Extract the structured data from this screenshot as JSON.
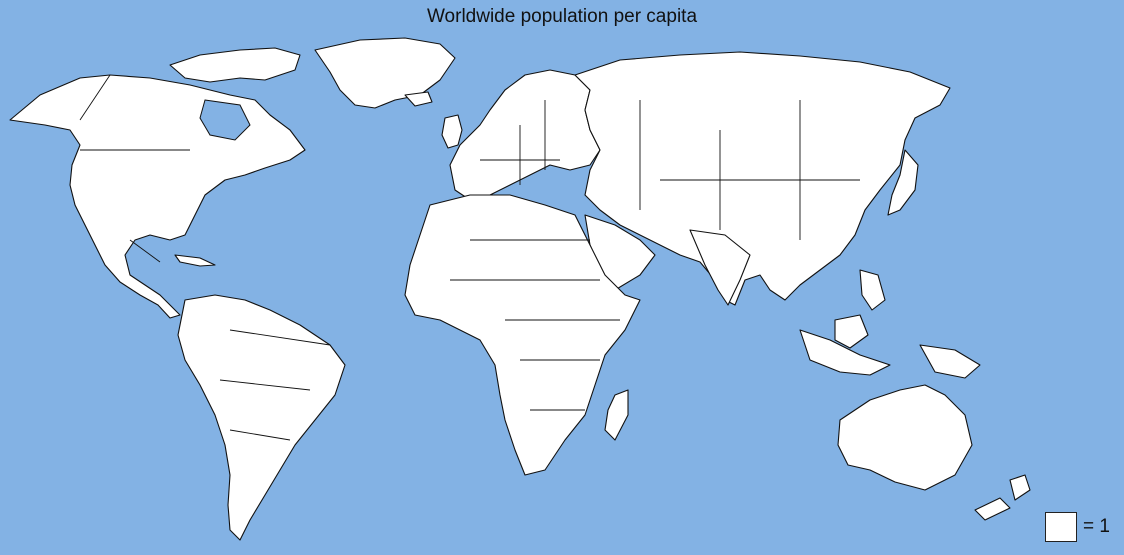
{
  "map": {
    "title": "Worldwide population per capita",
    "fill_color": "#ffffff",
    "ocean_color": "#83b2e4",
    "legend": {
      "label": "= 1"
    }
  }
}
